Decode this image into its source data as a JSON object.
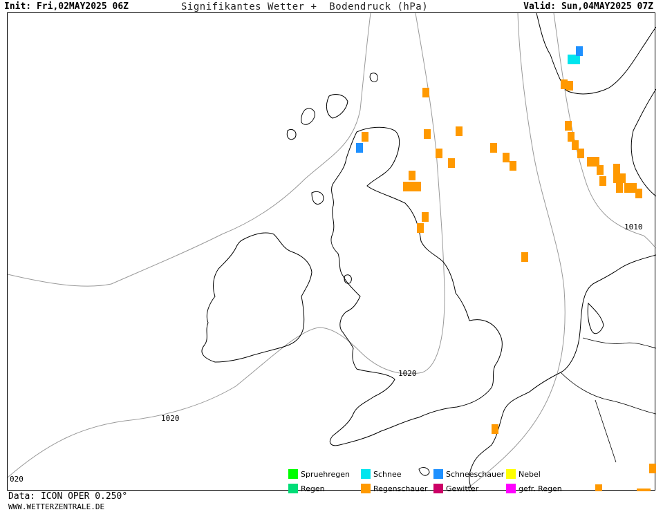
{
  "header": {
    "init": "Init: Fri,02MAY2025 06Z",
    "title": "Signifikantes Wetter +  Bodendruck (hPa)",
    "valid": "Valid: Sun,04MAY2025 07Z"
  },
  "isobar_labels": [
    "1010",
    "1020",
    "1020",
    "020"
  ],
  "legend": [
    {
      "label": "Spruehregen",
      "color": "#00ff00"
    },
    {
      "label": "Regen",
      "color": "#00dd77"
    },
    {
      "label": "Schnee",
      "color": "#00e5ee"
    },
    {
      "label": "Regenschauer",
      "color": "#ff9900"
    },
    {
      "label": "Schneeschauer",
      "color": "#1e90ff"
    },
    {
      "label": "Gewitter",
      "color": "#cc0066"
    },
    {
      "label": "Nebel",
      "color": "#ffff00"
    },
    {
      "label": "gefr. Regen",
      "color": "#ff00ff"
    }
  ],
  "footer": {
    "data": "Data: ICON OPER 0.250°",
    "site": "WWW.WETTERZENTRALE.DE"
  },
  "colors": {
    "rain_showers": "#ff9900",
    "snow": "#00e5ee",
    "snow_showers": "#1e90ff",
    "isobar": "#999999",
    "coast": "#000000"
  }
}
